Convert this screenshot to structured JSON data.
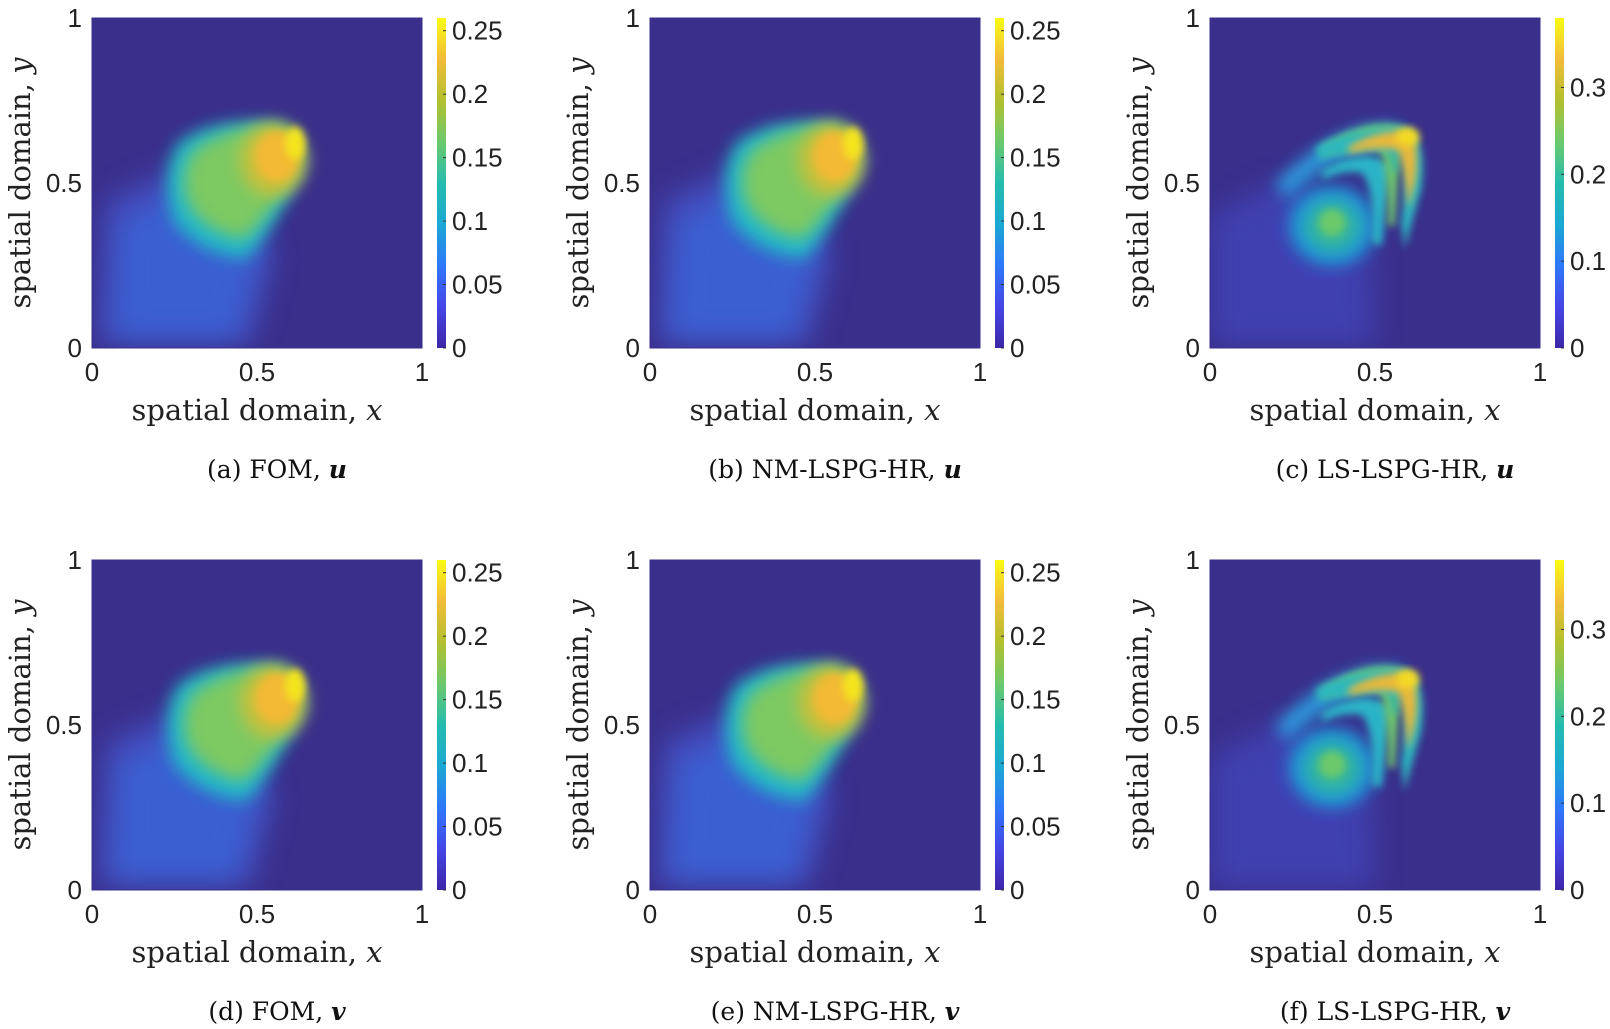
{
  "colors": {
    "low": "#3a2f8b",
    "colormap": [
      "#3e26a8",
      "#4546e7",
      "#2e78fa",
      "#1ba8d3",
      "#25bcaf",
      "#6cc96b",
      "#b3c02f",
      "#f2bc38",
      "#fafb14"
    ]
  },
  "chart_data": [
    {
      "id": "a",
      "type": "heatmap",
      "field": "u",
      "pattern": "fom",
      "xlabel": "spatial domain, ",
      "xvar": "x",
      "ylabel": "spatial domain, ",
      "yvar": "y",
      "xticks": [
        "0",
        "0.5",
        "1"
      ],
      "yticks": [
        "0",
        "0.5",
        "1"
      ],
      "xlim": [
        0,
        1
      ],
      "ylim": [
        0,
        1
      ],
      "clim": [
        0,
        0.26
      ],
      "cbar_ticks": [
        0,
        0.05,
        0.1,
        0.15,
        0.2,
        0.25
      ],
      "cbar_labels": [
        "0",
        "0.05",
        "0.1",
        "0.15",
        "0.2",
        "0.25"
      ],
      "caption": "(a) FOM, ",
      "caption_var": "u"
    },
    {
      "id": "b",
      "type": "heatmap",
      "field": "u",
      "pattern": "fom",
      "xlabel": "spatial domain, ",
      "xvar": "x",
      "ylabel": "spatial domain, ",
      "yvar": "y",
      "xticks": [
        "0",
        "0.5",
        "1"
      ],
      "yticks": [
        "0",
        "0.5",
        "1"
      ],
      "xlim": [
        0,
        1
      ],
      "ylim": [
        0,
        1
      ],
      "clim": [
        0,
        0.26
      ],
      "cbar_ticks": [
        0,
        0.05,
        0.1,
        0.15,
        0.2,
        0.25
      ],
      "cbar_labels": [
        "0",
        "0.05",
        "0.1",
        "0.15",
        "0.2",
        "0.25"
      ],
      "caption": "(b) NM-LSPG-HR, ",
      "caption_var": "u"
    },
    {
      "id": "c",
      "type": "heatmap",
      "field": "u",
      "pattern": "ls",
      "xlabel": "spatial domain, ",
      "xvar": "x",
      "ylabel": "spatial domain, ",
      "yvar": "y",
      "xticks": [
        "0",
        "0.5",
        "1"
      ],
      "yticks": [
        "0",
        "0.5",
        "1"
      ],
      "xlim": [
        0,
        1
      ],
      "ylim": [
        0,
        1
      ],
      "clim": [
        0,
        0.38
      ],
      "cbar_ticks": [
        0,
        0.1,
        0.2,
        0.3
      ],
      "cbar_labels": [
        "0",
        "0.1",
        "0.2",
        "0.3"
      ],
      "caption": "(c) LS-LSPG-HR, ",
      "caption_var": "u"
    },
    {
      "id": "d",
      "type": "heatmap",
      "field": "v",
      "pattern": "fom",
      "xlabel": "spatial domain, ",
      "xvar": "x",
      "ylabel": "spatial domain, ",
      "yvar": "y",
      "xticks": [
        "0",
        "0.5",
        "1"
      ],
      "yticks": [
        "0",
        "0.5",
        "1"
      ],
      "xlim": [
        0,
        1
      ],
      "ylim": [
        0,
        1
      ],
      "clim": [
        0,
        0.26
      ],
      "cbar_ticks": [
        0,
        0.05,
        0.1,
        0.15,
        0.2,
        0.25
      ],
      "cbar_labels": [
        "0",
        "0.05",
        "0.1",
        "0.15",
        "0.2",
        "0.25"
      ],
      "caption": "(d) FOM, ",
      "caption_var": "v"
    },
    {
      "id": "e",
      "type": "heatmap",
      "field": "v",
      "pattern": "fom",
      "xlabel": "spatial domain, ",
      "xvar": "x",
      "ylabel": "spatial domain, ",
      "yvar": "y",
      "xticks": [
        "0",
        "0.5",
        "1"
      ],
      "yticks": [
        "0",
        "0.5",
        "1"
      ],
      "xlim": [
        0,
        1
      ],
      "ylim": [
        0,
        1
      ],
      "clim": [
        0,
        0.26
      ],
      "cbar_ticks": [
        0,
        0.05,
        0.1,
        0.15,
        0.2,
        0.25
      ],
      "cbar_labels": [
        "0",
        "0.05",
        "0.1",
        "0.15",
        "0.2",
        "0.25"
      ],
      "caption": "(e) NM-LSPG-HR, ",
      "caption_var": "v"
    },
    {
      "id": "f",
      "type": "heatmap",
      "field": "v",
      "pattern": "ls",
      "xlabel": "spatial domain, ",
      "xvar": "x",
      "ylabel": "spatial domain, ",
      "yvar": "y",
      "xticks": [
        "0",
        "0.5",
        "1"
      ],
      "yticks": [
        "0",
        "0.5",
        "1"
      ],
      "xlim": [
        0,
        1
      ],
      "ylim": [
        0,
        1
      ],
      "clim": [
        0,
        0.38
      ],
      "cbar_ticks": [
        0,
        0.1,
        0.2,
        0.3
      ],
      "cbar_labels": [
        "0",
        "0.1",
        "0.2",
        "0.3"
      ],
      "caption": "(f) LS-LSPG-HR, ",
      "caption_var": "v"
    }
  ]
}
